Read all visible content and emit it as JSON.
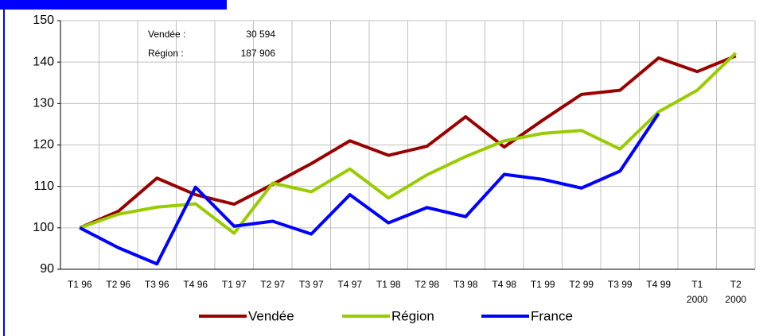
{
  "chart_data": {
    "type": "line",
    "categories": [
      "T1 96",
      "T2 96",
      "T3 96",
      "T4 96",
      "T1 97",
      "T2 97",
      "T3 97",
      "T4 97",
      "T1 98",
      "T2 98",
      "T3 98",
      "T4 98",
      "T1 99",
      "T2 99",
      "T3 99",
      "T4 99",
      "T1 2000",
      "T2 2000"
    ],
    "series": [
      {
        "name": "Vendée",
        "color": "#990000",
        "values": [
          100,
          104,
          112,
          108,
          105.7,
          110.5,
          115.5,
          121,
          117.5,
          119.7,
          126.8,
          119.5,
          126,
          132.2,
          133.2,
          141,
          137.7,
          141.5
        ]
      },
      {
        "name": "Région",
        "color": "#99cc00",
        "values": [
          100,
          103.3,
          105,
          105.8,
          98.7,
          110.8,
          108.7,
          114.2,
          107.2,
          112.8,
          117.2,
          121,
          122.8,
          123.5,
          119,
          128,
          133.2,
          142.2
        ]
      },
      {
        "name": "France",
        "color": "#0000ff",
        "values": [
          100,
          95.2,
          91.3,
          109.8,
          100.4,
          101.6,
          98.5,
          108,
          101.2,
          104.9,
          102.7,
          112.9,
          111.7,
          109.6,
          113.7,
          127.6,
          null,
          null
        ]
      }
    ],
    "annotations": [
      {
        "label": "Vendée :",
        "value": "30 594"
      },
      {
        "label": "Région :",
        "value": "187 906"
      }
    ],
    "ylim": [
      90,
      150
    ],
    "yticks": [
      90,
      100,
      110,
      120,
      130,
      140,
      150
    ],
    "grid": true,
    "legend": "bottom"
  }
}
